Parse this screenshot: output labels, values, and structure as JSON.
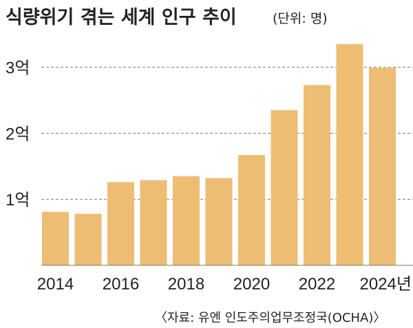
{
  "chart_data": {
    "type": "bar",
    "title": "식량위기 겪는 세계 인구 추이",
    "unit_note": "(단위: 명)",
    "categories": [
      "2014",
      "2015",
      "2016",
      "2017",
      "2018",
      "2019",
      "2020",
      "2021",
      "2022",
      "2023",
      "2024"
    ],
    "values": [
      8.1,
      7.8,
      12.6,
      12.9,
      13.5,
      13.2,
      16.7,
      23.5,
      27.3,
      33.5,
      29.9
    ],
    "value_unit": "천만",
    "x_tick_labels": [
      "2014",
      "2016",
      "2018",
      "2020",
      "2022",
      "2024년"
    ],
    "y_ticks": [
      10,
      20,
      30
    ],
    "y_tick_labels": [
      "1억",
      "2억",
      "3억"
    ],
    "ylim": [
      0,
      35
    ],
    "grid": "horizontal dashed",
    "bar_color": "#eebd74"
  },
  "source": "〈자료: 유엔 인도주의업무조정국(OCHA)〉"
}
